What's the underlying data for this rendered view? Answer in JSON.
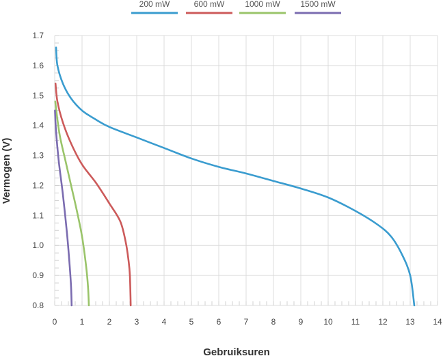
{
  "chart_data": {
    "type": "line",
    "xlabel": "Gebruiksuren",
    "ylabel": "Vermogen (V)",
    "xlim": [
      0,
      14
    ],
    "ylim": [
      0.8,
      1.7
    ],
    "x_ticks": [
      0,
      1,
      2,
      3,
      4,
      5,
      6,
      7,
      8,
      9,
      10,
      11,
      12,
      13,
      14
    ],
    "y_ticks": [
      0.8,
      0.9,
      1.0,
      1.1,
      1.2,
      1.3,
      1.4,
      1.5,
      1.6,
      1.7
    ],
    "y_tick_labels": [
      "0.8",
      "0.9",
      "1.0",
      "1.1",
      "1.2",
      "1.3",
      "1.4",
      "1.5",
      "1.6",
      "1.7"
    ],
    "grid": true,
    "legend_position": "top-center",
    "series": [
      {
        "name": "200 mW",
        "color": "#3a9ccf",
        "points": [
          [
            0.05,
            1.66
          ],
          [
            0.1,
            1.6
          ],
          [
            0.3,
            1.54
          ],
          [
            0.6,
            1.49
          ],
          [
            1.0,
            1.45
          ],
          [
            1.5,
            1.42
          ],
          [
            2.0,
            1.395
          ],
          [
            3.0,
            1.36
          ],
          [
            4.0,
            1.325
          ],
          [
            5.0,
            1.29
          ],
          [
            6.0,
            1.262
          ],
          [
            7.0,
            1.24
          ],
          [
            8.0,
            1.215
          ],
          [
            9.0,
            1.19
          ],
          [
            10.0,
            1.16
          ],
          [
            11.0,
            1.115
          ],
          [
            11.8,
            1.07
          ],
          [
            12.3,
            1.03
          ],
          [
            12.7,
            0.97
          ],
          [
            13.0,
            0.9
          ],
          [
            13.15,
            0.8
          ]
        ]
      },
      {
        "name": "600 mW",
        "color": "#cc5a5a",
        "points": [
          [
            0.03,
            1.54
          ],
          [
            0.1,
            1.48
          ],
          [
            0.3,
            1.41
          ],
          [
            0.6,
            1.34
          ],
          [
            1.0,
            1.27
          ],
          [
            1.5,
            1.21
          ],
          [
            2.0,
            1.14
          ],
          [
            2.4,
            1.08
          ],
          [
            2.6,
            1.01
          ],
          [
            2.7,
            0.95
          ],
          [
            2.75,
            0.9
          ],
          [
            2.78,
            0.8
          ]
        ]
      },
      {
        "name": "1000 mW",
        "color": "#9ac46a",
        "points": [
          [
            0.02,
            1.48
          ],
          [
            0.1,
            1.42
          ],
          [
            0.2,
            1.36
          ],
          [
            0.4,
            1.28
          ],
          [
            0.6,
            1.2
          ],
          [
            0.8,
            1.12
          ],
          [
            1.0,
            1.03
          ],
          [
            1.15,
            0.93
          ],
          [
            1.22,
            0.86
          ],
          [
            1.25,
            0.8
          ]
        ]
      },
      {
        "name": "1500 mW",
        "color": "#7b6cb0",
        "points": [
          [
            0.01,
            1.45
          ],
          [
            0.05,
            1.38
          ],
          [
            0.15,
            1.28
          ],
          [
            0.3,
            1.17
          ],
          [
            0.45,
            1.04
          ],
          [
            0.55,
            0.93
          ],
          [
            0.6,
            0.86
          ],
          [
            0.62,
            0.8
          ]
        ]
      }
    ]
  }
}
